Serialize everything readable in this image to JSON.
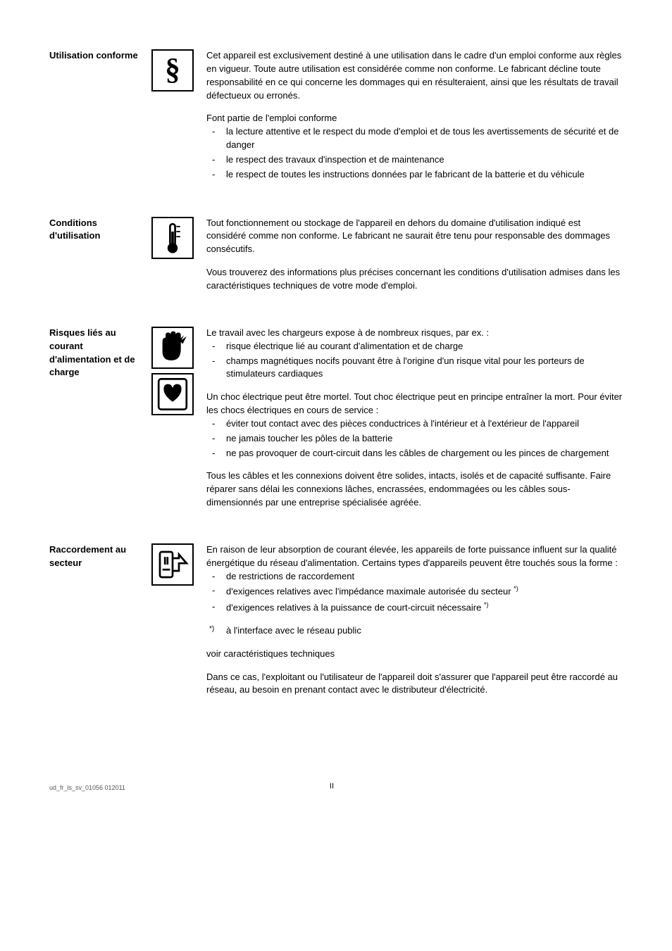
{
  "sections": [
    {
      "heading": "Utilisation conforme",
      "icons": [
        "section-sign"
      ],
      "paras": [
        {
          "type": "text",
          "text": "Cet appareil est exclusivement destiné à une utilisation dans le cadre d'un emploi conforme aux règles en vigueur. Toute autre utilisation est considérée comme non conforme. Le fabricant décline toute responsabilité en ce qui concerne les dommages qui en résulteraient, ainsi que les résultats de travail défectueux ou erronés."
        },
        {
          "type": "text",
          "text": "Font partie de l'emploi conforme"
        },
        {
          "type": "list",
          "items": [
            "la lecture attentive et le respect du mode d'emploi et de tous les avertissements de sécurité et de danger",
            "le respect des travaux d'inspection et de maintenance",
            "le respect de toutes les instructions données par le fabricant de la batterie et du véhicule"
          ]
        }
      ]
    },
    {
      "heading": "Conditions d'utilisation",
      "icons": [
        "thermometer"
      ],
      "paras": [
        {
          "type": "text",
          "text": "Tout fonctionnement ou stockage de l'appareil en dehors du domaine d'utilisation indiqué est considéré comme non conforme. Le fabricant ne saurait être tenu pour responsable des dommages consécutifs."
        },
        {
          "type": "text",
          "text": "Vous trouverez des informations plus précises concernant les conditions d'utilisation admises dans les caractéristiques techniques de votre mode d'emploi."
        }
      ]
    },
    {
      "heading": "Risques liés au courant d'alimentation et de charge",
      "icons": [
        "hand-shock",
        "heart"
      ],
      "paras": [
        {
          "type": "text",
          "text": "Le travail avec les chargeurs expose à de nombreux risques, par ex. :"
        },
        {
          "type": "list",
          "items": [
            "risque électrique lié au courant d'alimentation et de charge",
            "champs magnétiques nocifs pouvant être à l'origine d'un risque vital pour les porteurs de stimulateurs cardiaques"
          ]
        },
        {
          "type": "text",
          "text": "Un choc électrique peut être mortel. Tout choc électrique peut en principe entraîner la mort. Pour éviter les chocs électriques en cours de service :"
        },
        {
          "type": "list",
          "items": [
            "éviter tout contact avec des pièces conductrices à l'intérieur et à l'extérieur de l'appareil",
            "ne jamais toucher les pôles de la batterie",
            "ne pas provoquer de court-circuit dans les câbles de chargement ou les pinces de chargement"
          ]
        },
        {
          "type": "text",
          "text": "Tous les câbles et les connexions doivent être solides, intacts, isolés et de capacité suffisante. Faire réparer sans délai les connexions lâches, encrassées, endommagées ou les câbles sous-dimensionnés par une entreprise spécialisée agréée."
        }
      ]
    },
    {
      "heading": "Raccordement au secteur",
      "icons": [
        "plug"
      ],
      "paras": [
        {
          "type": "text",
          "text": "En raison de leur absorption de courant élevée, les appareils de forte puissance influent sur la qualité énergétique du réseau d'alimentation. Certains types d'appareils peuvent être touchés sous la forme :"
        },
        {
          "type": "list",
          "items": [
            "de restrictions de raccordement",
            "d'exigences relatives avec l'impédance maximale autorisée du secteur *)",
            "d'exigences relatives à la puissance de court-circuit nécessaire *)"
          ]
        },
        {
          "type": "footnote",
          "mark": "*)",
          "text": "à l'interface avec le réseau public"
        },
        {
          "type": "text",
          "text": "voir caractéristiques techniques"
        },
        {
          "type": "text",
          "text": "Dans ce cas, l'exploitant ou l'utilisateur de l'appareil doit s'assurer que l'appareil peut être raccordé au réseau, au besoin en prenant contact avec le distributeur d'électricité."
        }
      ]
    }
  ],
  "footer": {
    "left": "ud_fr_ls_sv_01056   012011",
    "page": "II"
  },
  "iconSvgs": {
    "section-sign": "<text x='30' y='44' font-size='48' font-weight='bold' text-anchor='middle' font-family='serif'>§</text>",
    "thermometer": "<rect x='26' y='8' width='8' height='34' rx='4' fill='none' stroke='black' stroke-width='3'/><circle cx='30' cy='46' r='8' fill='black'/><rect x='28' y='20' width='4' height='24' fill='black'/><line x1='36' y1='12' x2='42' y2='12' stroke='black' stroke-width='2'/><line x1='36' y1='20' x2='42' y2='20' stroke='black' stroke-width='2'/><line x1='36' y1='28' x2='42' y2='28' stroke='black' stroke-width='2'/>",
    "hand-shock": "<path d='M14 36 L14 20 Q14 14 19 14 L19 10 Q19 6 23 6 Q27 6 27 10 L27 8 Q27 4 31 4 Q35 4 35 8 L35 10 Q35 6 39 6 Q43 6 43 10 L43 32 Q43 50 28 50 Q14 50 14 36 Z' fill='black'/><path d='M40 18 L48 10 L44 18 L52 12 L46 24 Z' fill='black'/>",
    "heart": "<rect x='8' y='6' width='44' height='48' rx='4' fill='none' stroke='black' stroke-width='3'/><path d='M30 42 Q16 32 16 22 Q16 14 23 14 Q28 14 30 20 Q32 14 37 14 Q44 14 44 22 Q44 32 30 42 Z' fill='black'/>",
    "plug": "<rect x='10' y='10' width='20' height='40' rx='3' fill='none' stroke='black' stroke-width='3'/><line x1='18' y1='18' x2='18' y2='30' stroke='black' stroke-width='3'/><line x1='22' y1='18' x2='22' y2='30' stroke='black' stroke-width='3'/><line x1='14' y1='38' x2='26' y2='38' stroke='black' stroke-width='3'/><path d='M30 20 L40 20 L40 14 L52 28 L40 28 L40 40 L30 40' fill='none' stroke='black' stroke-width='3'/>"
  }
}
